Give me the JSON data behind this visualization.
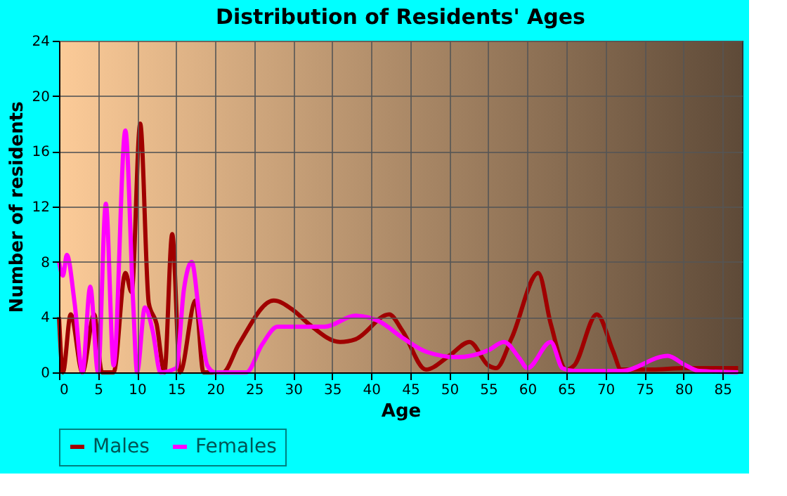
{
  "chart_data": {
    "type": "line",
    "title": "Distribution of Residents' Ages",
    "xlabel": "Age",
    "ylabel": "Number of residents",
    "xlim": [
      0,
      87.5
    ],
    "ylim": [
      0,
      24
    ],
    "xticks": [
      0,
      5,
      10,
      15,
      20,
      25,
      30,
      35,
      40,
      45,
      50,
      55,
      60,
      65,
      70,
      75,
      80,
      85
    ],
    "yticks": [
      0,
      4,
      8,
      12,
      16,
      20,
      24
    ],
    "grid": true,
    "legend": "bottom",
    "line_style": "solid",
    "marker": "none",
    "series": [
      {
        "name": "Males",
        "color": "#a00000",
        "x": [
          0,
          0.5,
          1.5,
          3,
          4.5,
          5.5,
          7,
          8.5,
          9.3,
          10.4,
          11.5,
          12.5,
          13.5,
          14.5,
          15.5,
          17.5,
          18.5,
          20,
          21,
          23,
          27.5,
          30,
          32,
          36,
          38,
          42.3,
          44,
          47,
          50,
          52.6,
          55,
          56,
          58,
          61.4,
          63,
          65,
          66,
          68.9,
          71,
          72,
          76,
          80,
          87
        ],
        "values": [
          4,
          0,
          4.2,
          0,
          4.2,
          0,
          0,
          7.2,
          5.8,
          18,
          5,
          3.5,
          0,
          10,
          0,
          5.2,
          0,
          0,
          0,
          2,
          5.2,
          4.5,
          3.5,
          2.2,
          2.4,
          4.2,
          3,
          0.2,
          1.2,
          2.2,
          0.5,
          0.3,
          2.5,
          7.2,
          3.5,
          0.2,
          0.5,
          4.2,
          1.5,
          0.2,
          0.2,
          0.3,
          0.3
        ]
      },
      {
        "name": "Females",
        "color": "#ff00ff",
        "x": [
          0,
          0.5,
          1,
          2,
          3,
          4,
          5,
          6,
          7,
          8.5,
          9.5,
          10,
          11,
          12,
          13,
          15,
          16,
          17,
          18,
          19,
          20,
          24,
          26,
          28,
          31,
          34,
          38,
          41,
          44,
          47,
          51,
          55,
          57,
          59,
          60,
          63,
          64.5,
          66,
          72,
          78,
          80,
          82,
          87
        ],
        "values": [
          8,
          7,
          8.5,
          5,
          0,
          6.2,
          0,
          12.2,
          0.5,
          17.5,
          5,
          0,
          4.7,
          3,
          0,
          0.3,
          6,
          8,
          4,
          0.5,
          0,
          0,
          2,
          3.3,
          3.3,
          3.3,
          4.1,
          3.7,
          2.5,
          1.5,
          1.1,
          1.6,
          2.2,
          1,
          0.3,
          2.2,
          0.3,
          0.1,
          0.1,
          1.2,
          0.6,
          0.1,
          0
        ]
      }
    ]
  }
}
